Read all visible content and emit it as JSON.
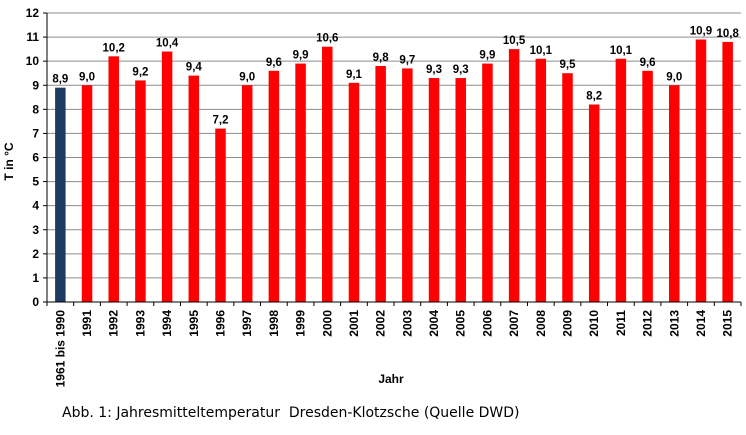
{
  "chart_data": {
    "type": "bar",
    "categories": [
      "1961 bis 1990",
      "1991",
      "1992",
      "1993",
      "1994",
      "1995",
      "1996",
      "1997",
      "1998",
      "1999",
      "2000",
      "2001",
      "2002",
      "2003",
      "2004",
      "2005",
      "2006",
      "2007",
      "2008",
      "2009",
      "2010",
      "2011",
      "2012",
      "2013",
      "2014",
      "2015"
    ],
    "values": [
      8.9,
      9.0,
      10.2,
      9.2,
      10.4,
      9.4,
      7.2,
      9.0,
      9.6,
      9.9,
      10.6,
      9.1,
      9.8,
      9.7,
      9.3,
      9.3,
      9.9,
      10.5,
      10.1,
      9.5,
      8.2,
      10.1,
      9.6,
      9.0,
      10.9,
      10.8
    ],
    "data_labels": [
      "8,9",
      "9,0",
      "10,2",
      "9,2",
      "10,4",
      "9,4",
      "7,2",
      "9,0",
      "9,6",
      "9,9",
      "10,6",
      "9,1",
      "9,8",
      "9,7",
      "9,3",
      "9,3",
      "9,9",
      "10,5",
      "10,1",
      "9,5",
      "8,2",
      "10,1",
      "9,6",
      "9,0",
      "10,9",
      "10,8"
    ],
    "bar_colors": [
      "#1f3b63",
      "#ff0000",
      "#ff0000",
      "#ff0000",
      "#ff0000",
      "#ff0000",
      "#ff0000",
      "#ff0000",
      "#ff0000",
      "#ff0000",
      "#ff0000",
      "#ff0000",
      "#ff0000",
      "#ff0000",
      "#ff0000",
      "#ff0000",
      "#ff0000",
      "#ff0000",
      "#ff0000",
      "#ff0000",
      "#ff0000",
      "#ff0000",
      "#ff0000",
      "#ff0000",
      "#ff0000",
      "#ff0000"
    ],
    "ylim": [
      0,
      12
    ],
    "yticks": [
      "0",
      "1",
      "2",
      "3",
      "4",
      "5",
      "6",
      "7",
      "8",
      "9",
      "10",
      "11",
      "12"
    ],
    "ylabel": "T in °C",
    "xlabel": "Jahr",
    "grid": true,
    "legend": "none"
  },
  "caption": "Abb. 1: Jahresmitteltemperatur  Dresden-Klotzsche (Quelle DWD)"
}
